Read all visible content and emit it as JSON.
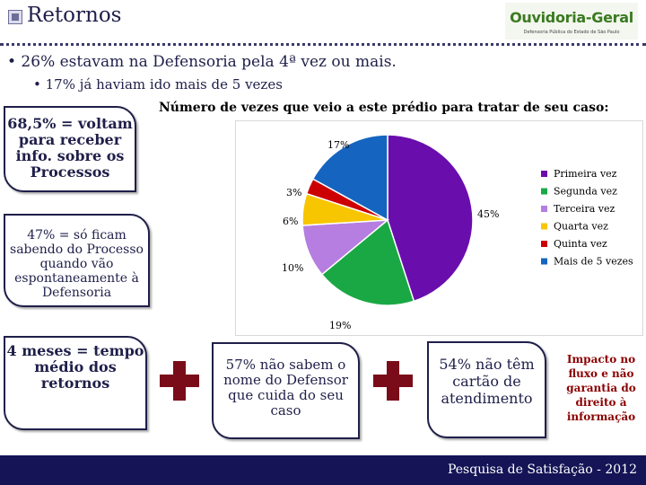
{
  "header": {
    "title": "Retornos",
    "logo_main": "Ouvidoria-Geral",
    "logo_sub": "Defensoria Pública do Estado de São Paulo"
  },
  "bullets": [
    "• 26% estavam na Defensoria pela 4ª vez ou mais.",
    "• 17% já haviam ido mais de 5 vezes"
  ],
  "callouts": {
    "c1": [
      "68,5% = voltam",
      "para receber",
      "info. sobre os",
      "Processos"
    ],
    "c2": [
      "47% = só ficam",
      "sabendo do Processo",
      "quando vão",
      "espontaneamente à",
      "Defensoria"
    ],
    "c3": [
      "4 meses = tempo",
      "médio dos",
      "retornos"
    ],
    "c4": [
      "57% não sabem o",
      "nome do Defensor",
      "que cuida do seu",
      "caso"
    ],
    "c5": [
      "54% não têm",
      "cartão de",
      "atendimento"
    ],
    "c6": [
      "Impacto no",
      "fluxo e não",
      "garantia do",
      "direito à",
      "informação"
    ]
  },
  "chart_data": {
    "type": "pie",
    "title": "Número de vezes que veio a este prédio para tratar de seu caso:",
    "categories": [
      "Primeira vez",
      "Segunda vez",
      "Terceira vez",
      "Quarta vez",
      "Quinta vez",
      "Mais de 5 vezes"
    ],
    "values": [
      45,
      19,
      10,
      6,
      3,
      17
    ],
    "labels": [
      "45%",
      "19%",
      "10%",
      "6%",
      "3%",
      "17%"
    ],
    "colors": [
      "#6a0dad",
      "#1aa845",
      "#b57ee0",
      "#f7c600",
      "#cc0000",
      "#1565c0"
    ],
    "legend": "right"
  },
  "footer": {
    "text": "Pesquisa de Satisfação - 2012"
  }
}
